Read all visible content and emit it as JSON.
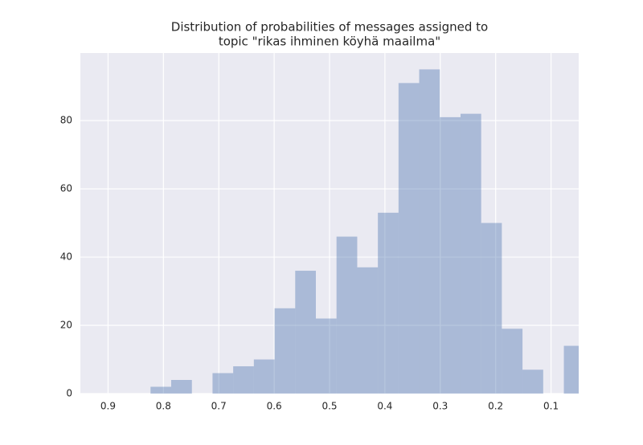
{
  "chart_data": {
    "type": "histogram",
    "title": [
      "Distribution of probabilities of messages assigned to",
      "topic \"rikas ihminen köyhä maailma\""
    ],
    "bins": [
      0.0395,
      0.0768,
      0.1141,
      0.1515,
      0.1888,
      0.2261,
      0.2634,
      0.3008,
      0.3381,
      0.3754,
      0.4127,
      0.45,
      0.4874,
      0.5247,
      0.562,
      0.5993,
      0.6367,
      0.674,
      0.7113,
      0.7486,
      0.786,
      0.8233
    ],
    "values": [
      14,
      0,
      7,
      19,
      50,
      82,
      81,
      95,
      91,
      53,
      37,
      46,
      22,
      36,
      25,
      10,
      8,
      6,
      0,
      4,
      2
    ],
    "color": "#4c72b0",
    "xlim": [
      0.95,
      0.05
    ],
    "xticks": [
      0.9,
      0.8,
      0.7,
      0.6,
      0.5,
      0.4,
      0.3,
      0.2,
      0.1
    ],
    "ylim": [
      0,
      99.8
    ],
    "yticks": [
      0,
      20,
      40,
      60,
      80
    ],
    "grid": true
  }
}
